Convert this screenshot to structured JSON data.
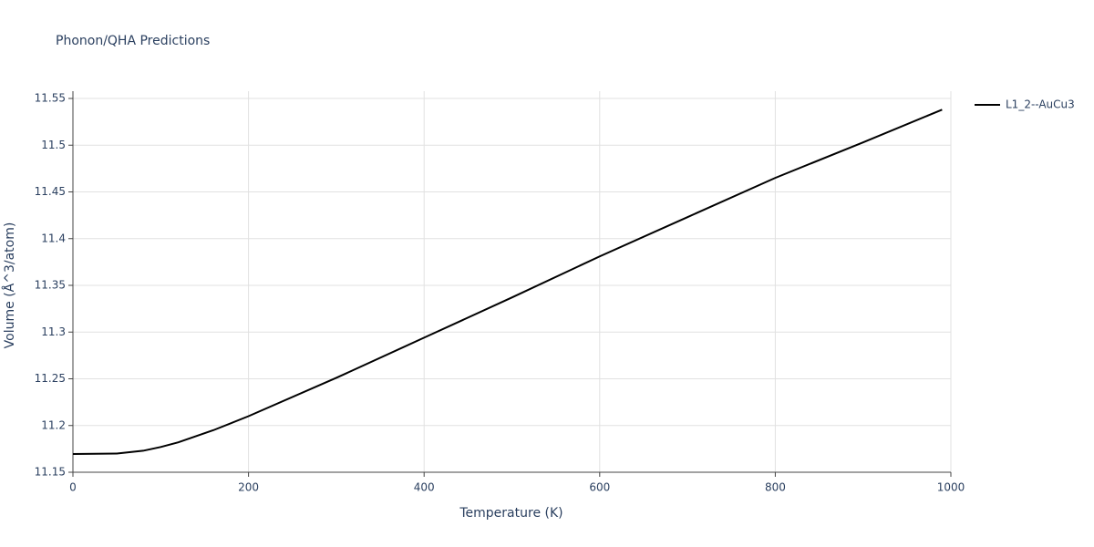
{
  "chart_data": {
    "type": "line",
    "title": "Phonon/QHA Predictions",
    "x_label": "Temperature (K)",
    "y_label": "Volume (Å^3/atom)",
    "x": [
      0,
      50,
      80,
      100,
      120,
      160,
      200,
      300,
      400,
      500,
      600,
      700,
      800,
      900,
      990
    ],
    "series": [
      {
        "name": "L1_2--AuCu3",
        "color": "#000000",
        "values": [
          11.1695,
          11.17,
          11.173,
          11.177,
          11.182,
          11.195,
          11.21,
          11.251,
          11.294,
          11.337,
          11.381,
          11.423,
          11.465,
          11.503,
          11.538
        ]
      }
    ],
    "xlim": [
      0,
      1000
    ],
    "xticks": [
      0,
      200,
      400,
      600,
      800,
      1000
    ],
    "ylim": [
      11.15,
      11.55
    ],
    "yticks": [
      11.15,
      11.2,
      11.25,
      11.3,
      11.35,
      11.4,
      11.45,
      11.5,
      11.55
    ],
    "grid": true,
    "legend_position": "top-right"
  }
}
